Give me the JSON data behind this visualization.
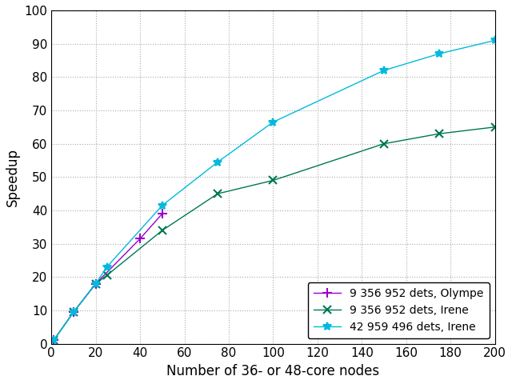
{
  "series": [
    {
      "label": "9 356 952 dets, Olympe",
      "x": [
        1,
        10,
        20,
        40,
        50
      ],
      "y": [
        1,
        9.5,
        18,
        31.5,
        39
      ],
      "color": "#9900cc",
      "marker": "+",
      "linestyle": "-",
      "markersize": 8,
      "linewidth": 1.0
    },
    {
      "label": "9 356 952 dets, Irene",
      "x": [
        1,
        10,
        20,
        25,
        50,
        75,
        100,
        150,
        175,
        200
      ],
      "y": [
        1,
        9.5,
        18,
        20.5,
        34,
        45,
        49,
        60,
        63,
        65
      ],
      "color": "#007755",
      "marker": "x",
      "linestyle": "-",
      "markersize": 7,
      "linewidth": 1.0
    },
    {
      "label": "42 959 496 dets, Irene",
      "x": [
        1,
        10,
        20,
        25,
        50,
        75,
        100,
        150,
        175,
        200
      ],
      "y": [
        1,
        9.5,
        18,
        23,
        41.5,
        54.5,
        66.5,
        82,
        87,
        91
      ],
      "color": "#00bbdd",
      "marker": "*",
      "linestyle": "-",
      "markersize": 7,
      "linewidth": 1.0
    }
  ],
  "xlabel": "Number of 36- or 48-core nodes",
  "ylabel": "Speedup",
  "xlim": [
    0,
    200
  ],
  "ylim": [
    0,
    100
  ],
  "xticks": [
    0,
    20,
    40,
    60,
    80,
    100,
    120,
    140,
    160,
    180,
    200
  ],
  "yticks": [
    0,
    10,
    20,
    30,
    40,
    50,
    60,
    70,
    80,
    90,
    100
  ],
  "legend_loc": "lower right",
  "background_color": "#ffffff",
  "grid_color": "#aaaaaa",
  "grid_linestyle": ":",
  "label_fontsize": 12,
  "tick_fontsize": 11,
  "legend_fontsize": 10
}
